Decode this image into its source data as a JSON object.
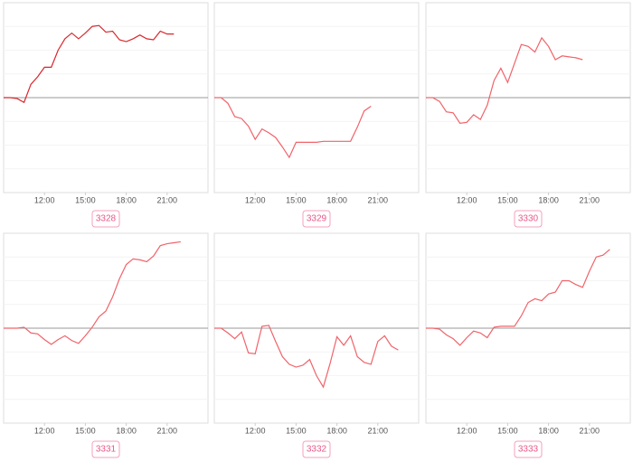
{
  "chart_data": [
    {
      "type": "line",
      "label": "3328",
      "color": "#d9262c",
      "baseline": 0,
      "xlim": [
        9,
        24
      ],
      "ylim": [
        -10,
        10
      ],
      "xticks": [
        {
          "value": 12,
          "label": "12:00"
        },
        {
          "value": 15,
          "label": "15:00"
        },
        {
          "value": 18,
          "label": "18:00"
        },
        {
          "value": 21,
          "label": "21:00"
        }
      ],
      "x": [
        9,
        9.5,
        10,
        10.5,
        11,
        11.5,
        12,
        12.5,
        13,
        13.5,
        14,
        14.5,
        15,
        15.5,
        16,
        16.5,
        17,
        17.5,
        18,
        18.5,
        19,
        19.5,
        20,
        20.5,
        21,
        21.5
      ],
      "values": [
        0,
        0,
        -0.1,
        -0.5,
        1.4,
        2.2,
        3.2,
        3.2,
        5.0,
        6.2,
        6.8,
        6.2,
        6.8,
        7.5,
        7.6,
        6.9,
        7.0,
        6.1,
        5.9,
        6.2,
        6.6,
        6.2,
        6.1,
        7.0,
        6.7,
        6.7
      ]
    },
    {
      "type": "line",
      "label": "3329",
      "color": "#f0636a",
      "baseline": 0,
      "xlim": [
        9,
        24
      ],
      "ylim": [
        -10,
        10
      ],
      "xticks": [
        {
          "value": 12,
          "label": "12:00"
        },
        {
          "value": 15,
          "label": "15:00"
        },
        {
          "value": 18,
          "label": "18:00"
        },
        {
          "value": 21,
          "label": "21:00"
        }
      ],
      "x": [
        9,
        9.5,
        10,
        10.5,
        11,
        11.5,
        12,
        12.5,
        13,
        13.5,
        14,
        14.5,
        15,
        15.5,
        16,
        16.5,
        17,
        17.5,
        18,
        18.5,
        19,
        19.5,
        20,
        20.5
      ],
      "values": [
        0,
        0,
        -0.6,
        -2.0,
        -2.2,
        -3.0,
        -4.4,
        -3.3,
        -3.7,
        -4.2,
        -5.2,
        -6.3,
        -4.7,
        -4.7,
        -4.7,
        -4.7,
        -4.6,
        -4.6,
        -4.6,
        -4.6,
        -4.6,
        -3.1,
        -1.4,
        -0.9
      ]
    },
    {
      "type": "line",
      "label": "3330",
      "color": "#f0636a",
      "baseline": 0,
      "xlim": [
        9,
        24
      ],
      "ylim": [
        -10,
        10
      ],
      "xticks": [
        {
          "value": 12,
          "label": "12:00"
        },
        {
          "value": 15,
          "label": "15:00"
        },
        {
          "value": 18,
          "label": "18:00"
        },
        {
          "value": 21,
          "label": "21:00"
        }
      ],
      "x": [
        9,
        9.5,
        10,
        10.5,
        11,
        11.5,
        12,
        12.5,
        13,
        13.5,
        14,
        14.5,
        15,
        15.5,
        16,
        16.5,
        17,
        17.5,
        18,
        18.5,
        19,
        19.5,
        20,
        20.5
      ],
      "values": [
        0,
        0,
        -0.4,
        -1.5,
        -1.6,
        -2.7,
        -2.6,
        -1.8,
        -2.3,
        -0.8,
        1.8,
        3.1,
        1.6,
        3.6,
        5.6,
        5.4,
        4.8,
        6.3,
        5.4,
        4.0,
        4.4,
        4.3,
        4.2,
        4.0
      ]
    },
    {
      "type": "line",
      "label": "3331",
      "color": "#f0636a",
      "baseline": 0,
      "xlim": [
        9,
        24
      ],
      "ylim": [
        -10,
        10
      ],
      "xticks": [
        {
          "value": 12,
          "label": "12:00"
        },
        {
          "value": 15,
          "label": "15:00"
        },
        {
          "value": 18,
          "label": "18:00"
        },
        {
          "value": 21,
          "label": "21:00"
        }
      ],
      "x": [
        9,
        9.5,
        10,
        10.5,
        11,
        11.5,
        12,
        12.5,
        13,
        13.5,
        14,
        14.5,
        15,
        15.5,
        16,
        16.5,
        17,
        17.5,
        18,
        18.5,
        19,
        19.5,
        20,
        20.5,
        21,
        21.5,
        22
      ],
      "values": [
        0,
        0,
        0,
        0.1,
        -0.5,
        -0.6,
        -1.2,
        -1.7,
        -1.2,
        -0.8,
        -1.3,
        -1.6,
        -0.8,
        0.1,
        1.2,
        1.8,
        3.3,
        5.2,
        6.7,
        7.3,
        7.2,
        7.0,
        7.6,
        8.7,
        8.9,
        9.0,
        9.1
      ]
    },
    {
      "type": "line",
      "label": "3332",
      "color": "#f0636a",
      "baseline": 0,
      "xlim": [
        9,
        24
      ],
      "ylim": [
        -10,
        10
      ],
      "xticks": [
        {
          "value": 12,
          "label": "12:00"
        },
        {
          "value": 15,
          "label": "15:00"
        },
        {
          "value": 18,
          "label": "18:00"
        },
        {
          "value": 21,
          "label": "21:00"
        }
      ],
      "x": [
        9,
        9.5,
        10,
        10.5,
        11,
        11.5,
        12,
        12.5,
        13,
        13.5,
        14,
        14.5,
        15,
        15.5,
        16,
        16.5,
        17,
        17.5,
        18,
        18.5,
        19,
        19.5,
        20,
        20.5,
        21,
        21.5,
        22,
        22.5
      ],
      "values": [
        0,
        0,
        -0.5,
        -1.1,
        -0.4,
        -2.6,
        -2.7,
        0.2,
        0.3,
        -1.4,
        -3.0,
        -3.8,
        -4.1,
        -3.9,
        -3.3,
        -5.0,
        -6.2,
        -3.7,
        -0.9,
        -1.8,
        -0.8,
        -3.0,
        -3.6,
        -3.8,
        -1.4,
        -0.8,
        -1.9,
        -2.3
      ]
    },
    {
      "type": "line",
      "label": "3333",
      "color": "#f0636a",
      "baseline": 0,
      "xlim": [
        9,
        24
      ],
      "ylim": [
        -10,
        10
      ],
      "xticks": [
        {
          "value": 12,
          "label": "12:00"
        },
        {
          "value": 15,
          "label": "15:00"
        },
        {
          "value": 18,
          "label": "18:00"
        },
        {
          "value": 21,
          "label": "21:00"
        }
      ],
      "x": [
        9,
        9.5,
        10,
        10.5,
        11,
        11.5,
        12,
        12.5,
        13,
        13.5,
        14,
        14.5,
        15,
        15.5,
        16,
        16.5,
        17,
        17.5,
        18,
        18.5,
        19,
        19.5,
        20,
        20.5,
        21,
        21.5,
        22,
        22.5
      ],
      "values": [
        0,
        0,
        -0.1,
        -0.7,
        -1.1,
        -1.8,
        -1.0,
        -0.3,
        -0.5,
        -1.0,
        0.1,
        0.2,
        0.2,
        0.2,
        1.3,
        2.7,
        3.1,
        2.9,
        3.6,
        3.8,
        5.0,
        5.0,
        4.6,
        4.3,
        6.0,
        7.5,
        7.7,
        8.3
      ]
    }
  ]
}
